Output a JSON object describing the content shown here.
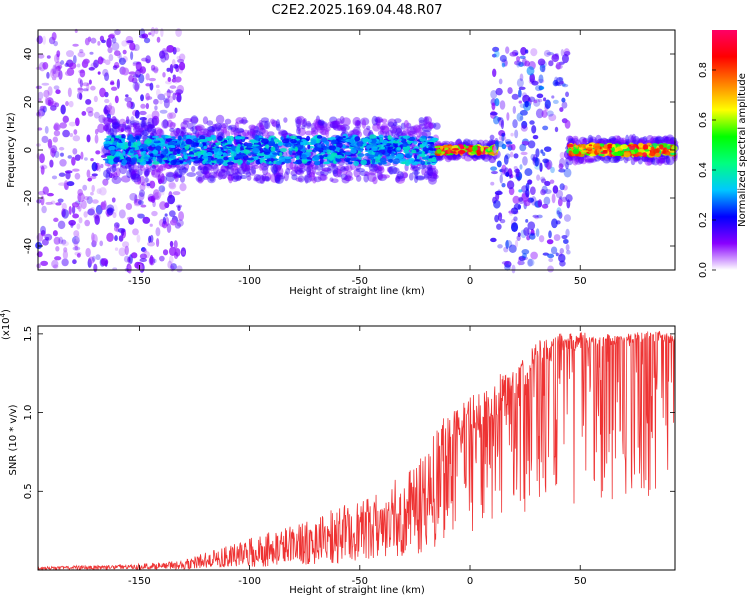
{
  "page_title": "C2E2.2025.169.04.48.R07",
  "chart_data": [
    {
      "type": "heatmap",
      "xlabel": "Height of straight line (km)",
      "ylabel": "Frequency (Hz)",
      "xlim": [
        -196,
        93
      ],
      "ylim": [
        -50,
        50
      ],
      "xticks": [
        -150,
        -100,
        -50,
        0,
        50
      ],
      "yticks": [
        -40,
        -20,
        0,
        20,
        40
      ],
      "colorbar": {
        "label": "Normalized spectral amplitude",
        "range": [
          0,
          0.96
        ],
        "ticks": [
          "0.0",
          "0.2",
          "0.4",
          "0.6",
          "0.8"
        ],
        "tick_values": [
          0.0,
          0.2,
          0.4,
          0.6,
          0.8
        ],
        "colormap": [
          "#ffffff",
          "#8800ff",
          "#0000ff",
          "#00c8ff",
          "#00ff80",
          "#00ff00",
          "#ffff00",
          "#ff8000",
          "#ff0000",
          "#ff0066"
        ]
      },
      "features": [
        {
          "x_range": [
            -196,
            -130
          ],
          "y_range": [
            -50,
            50
          ],
          "amplitude": 0.05,
          "note": "scattered low-amplitude speckle"
        },
        {
          "x_range": [
            -165,
            -15
          ],
          "y_center": 0,
          "y_halfwidth": 8,
          "amplitude": 0.35
        },
        {
          "x_range": [
            -15,
            12
          ],
          "y_center": 0,
          "y_halfwidth": 2,
          "amplitude": 0.9
        },
        {
          "x_range": [
            10,
            45
          ],
          "y_range": [
            -50,
            42
          ],
          "amplitude": 0.1,
          "note": "vertical speckle columns"
        },
        {
          "x_range": [
            45,
            93
          ],
          "y_center": 0,
          "y_halfwidth": 3,
          "amplitude": 0.85
        }
      ]
    },
    {
      "type": "line",
      "xlabel": "Height of straight line (km)",
      "ylabel": "SNR (10 * v/v)",
      "y_multiplier": "(x10^4)",
      "multiplier_base": "(x10",
      "multiplier_exp": "4",
      "multiplier_close": ")",
      "xlim": [
        -196,
        93
      ],
      "ylim": [
        0,
        1.55
      ],
      "xticks": [
        -150,
        -100,
        -50,
        0,
        50
      ],
      "yticks": [
        0.5,
        1.0,
        1.5
      ],
      "ytick_labels": [
        "0.5",
        "1.0",
        "1.5"
      ],
      "color": "#ee3333",
      "envelope": {
        "x": [
          -196,
          -150,
          -130,
          -120,
          -100,
          -80,
          -60,
          -40,
          -20,
          -12,
          -10,
          0,
          10,
          20,
          30,
          40,
          50,
          60,
          70,
          80,
          93
        ],
        "y_mean": [
          0.01,
          0.015,
          0.02,
          0.04,
          0.06,
          0.1,
          0.15,
          0.22,
          0.32,
          0.55,
          0.8,
          0.8,
          0.95,
          1.1,
          1.25,
          1.35,
          1.4,
          1.42,
          1.44,
          1.45,
          1.44
        ],
        "y_max": [
          0.02,
          0.04,
          0.06,
          0.12,
          0.2,
          0.3,
          0.4,
          0.5,
          0.75,
          1.0,
          1.0,
          1.1,
          1.2,
          1.35,
          1.45,
          1.5,
          1.52,
          1.5,
          1.5,
          1.53,
          1.5
        ]
      }
    }
  ]
}
